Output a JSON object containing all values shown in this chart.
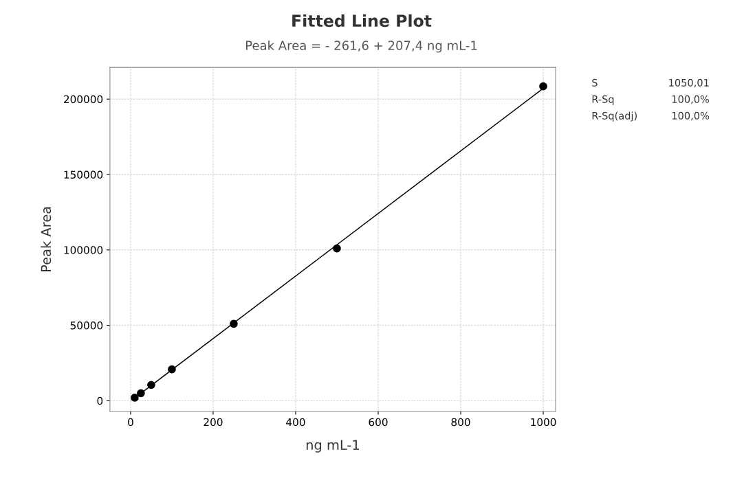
{
  "chart_data": {
    "type": "scatter",
    "title": "Fitted Line Plot",
    "subtitle": "Peak Area = - 261,6 + 207,4 ng mL-1",
    "xlabel": "ng mL-1",
    "ylabel": "Peak Area",
    "series": [
      {
        "color": "#000000",
        "x": [
          10,
          25,
          50,
          100,
          250,
          500,
          1000
        ],
        "values": [
          2000,
          5000,
          10500,
          20800,
          51000,
          101000,
          208500
        ],
        "marker": "circle"
      },
      {
        "type": "line",
        "color": "#000000",
        "x": [
          10,
          1000
        ],
        "values": [
          1800,
          207100
        ],
        "line_style": "solid"
      }
    ],
    "xlim": [
      -50,
      1030
    ],
    "ylim": [
      -7000,
      221000
    ],
    "xticks": [
      0,
      200,
      400,
      600,
      800,
      1000
    ],
    "yticks": [
      0,
      50000,
      100000,
      150000,
      200000
    ],
    "grid": true,
    "legend": false,
    "annotations": [
      "S",
      "1050,01",
      "R-Sq",
      "100,0%",
      "R-Sq(adj)",
      "100,0%"
    ]
  }
}
